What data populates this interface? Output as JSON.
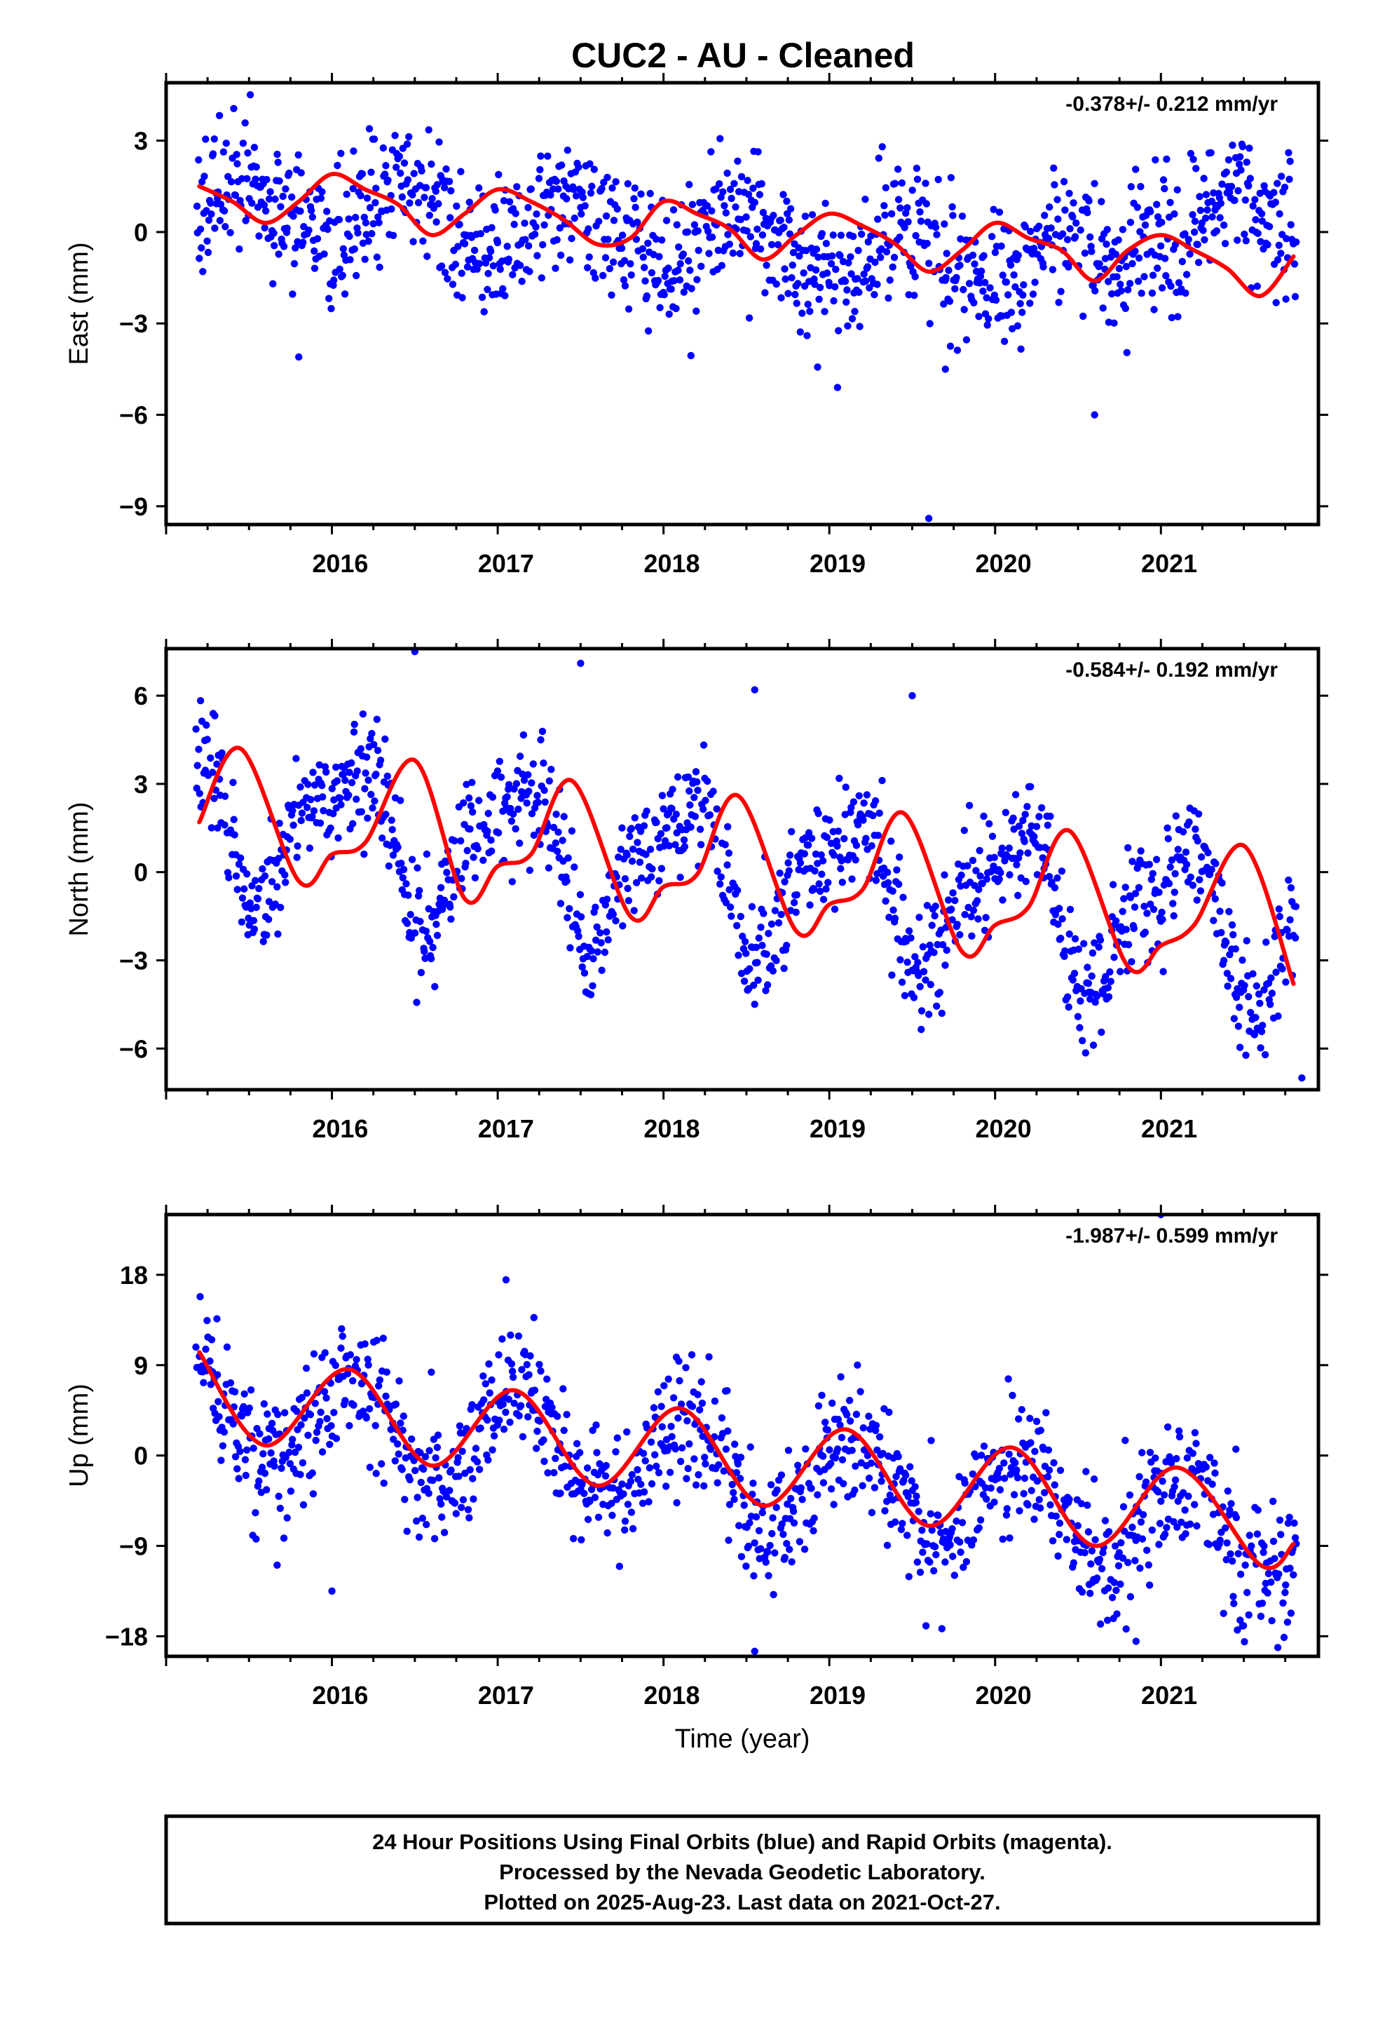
{
  "title": "CUC2  - AU - Cleaned",
  "colors": {
    "points": "#0000ff",
    "fit": "#ff0000",
    "frame": "#000000"
  },
  "chart_data": [
    {
      "type": "scatter",
      "ylabel": "East (mm)",
      "xlabel": "",
      "rate": "-0.378+/- 0.212 mm/yr",
      "xlim": [
        2015.0,
        2021.95
      ],
      "ylim": [
        -9.6,
        4.9
      ],
      "yticks": [
        3,
        0,
        -3,
        -6,
        -9
      ],
      "ytick_labels": [
        "3",
        "0",
        "−3",
        "−6",
        "−9"
      ],
      "xticks": [
        2016,
        2017,
        2018,
        2019,
        2020,
        2021
      ],
      "xtick_labels": [
        "2016",
        "2017",
        "2018",
        "2019",
        "2020",
        "2021"
      ],
      "trend": {
        "rate": -0.378,
        "offset": 0.95
      },
      "seasonal": {
        "annual_amp": 0.9,
        "annual_phase": -0.2,
        "semi_amp": 0.3,
        "semi_phase": 0.4
      },
      "offsets": [
        {
          "x": 2020.8,
          "jump": 1.6
        }
      ],
      "noise": 1.15,
      "outliers": [
        {
          "x": 2015.8,
          "y": -4.1
        },
        {
          "x": 2019.6,
          "y": -9.4
        },
        {
          "x": 2020.6,
          "y": -6.0
        },
        {
          "x": 2019.7,
          "y": -4.5
        }
      ],
      "fit_x": [
        2015.2,
        2015.4,
        2015.6,
        2015.8,
        2016.0,
        2016.2,
        2016.4,
        2016.6,
        2016.8,
        2017.0,
        2017.2,
        2017.4,
        2017.6,
        2017.8,
        2018.0,
        2018.2,
        2018.4,
        2018.6,
        2018.8,
        2019.0,
        2019.2,
        2019.4,
        2019.6,
        2019.8,
        2020.0,
        2020.2,
        2020.4,
        2020.6,
        2020.8,
        2021.0,
        2021.2,
        2021.4,
        2021.6,
        2021.8
      ],
      "fit_y": [
        1.5,
        1.0,
        0.3,
        1.0,
        1.9,
        1.4,
        0.9,
        -0.1,
        0.6,
        1.4,
        1.0,
        0.4,
        -0.4,
        -0.2,
        1.0,
        0.6,
        0.1,
        -0.9,
        -0.1,
        0.6,
        0.2,
        -0.4,
        -1.3,
        -0.6,
        0.3,
        -0.2,
        -0.6,
        -1.6,
        -0.6,
        -0.1,
        -0.6,
        -1.2,
        -2.1,
        -0.8
      ]
    },
    {
      "type": "scatter",
      "ylabel": "North (mm)",
      "xlabel": "",
      "rate": "-0.584+/- 0.192 mm/yr",
      "xlim": [
        2015.0,
        2021.95
      ],
      "ylim": [
        -7.4,
        7.6
      ],
      "yticks": [
        6,
        3,
        0,
        -3,
        -6
      ],
      "ytick_labels": [
        "6",
        "3",
        "0",
        "−3",
        "−6"
      ],
      "xticks": [
        2016,
        2017,
        2018,
        2019,
        2020,
        2021
      ],
      "xtick_labels": [
        "2016",
        "2017",
        "2018",
        "2019",
        "2020",
        "2021"
      ],
      "trend": {
        "rate": -0.584,
        "offset": 1.9
      },
      "seasonal": {
        "annual_amp": 2.2,
        "annual_phase": 0.15,
        "semi_amp": 0.9,
        "semi_phase": -0.3
      },
      "offsets": [],
      "noise": 1.0,
      "outliers": [
        {
          "x": 2016.5,
          "y": 7.5
        },
        {
          "x": 2017.5,
          "y": 7.1
        },
        {
          "x": 2019.5,
          "y": 6.0
        },
        {
          "x": 2021.85,
          "y": -7.0
        },
        {
          "x": 2018.55,
          "y": 6.2
        }
      ],
      "fit_x": [
        2015.2,
        2015.45,
        2015.8,
        2016.0,
        2016.2,
        2016.5,
        2016.8,
        2017.0,
        2017.2,
        2017.45,
        2017.8,
        2018.0,
        2018.2,
        2018.45,
        2018.8,
        2019.0,
        2019.2,
        2019.45,
        2019.8,
        2020.0,
        2020.2,
        2020.45,
        2020.8,
        2021.0,
        2021.2,
        2021.5,
        2021.8
      ],
      "fit_y": [
        1.7,
        4.2,
        -0.3,
        0.6,
        1.0,
        3.8,
        -0.9,
        0.2,
        0.6,
        3.1,
        -1.5,
        -0.5,
        -0.1,
        2.6,
        -2.0,
        -1.1,
        -0.6,
        2.0,
        -2.7,
        -1.8,
        -1.2,
        1.4,
        -3.2,
        -2.5,
        -1.8,
        0.9,
        -3.8
      ]
    },
    {
      "type": "scatter",
      "ylabel": "Up (mm)",
      "xlabel": "Time (year)",
      "rate": "-1.987+/- 0.599 mm/yr",
      "xlim": [
        2015.0,
        2021.95
      ],
      "ylim": [
        -20.0,
        24.0
      ],
      "yticks": [
        18,
        9,
        0,
        -9,
        -18
      ],
      "ytick_labels": [
        "18",
        "9",
        "0",
        "−9",
        "−18"
      ],
      "xticks": [
        2016,
        2017,
        2018,
        2019,
        2020,
        2021
      ],
      "xtick_labels": [
        "2016",
        "2017",
        "2018",
        "2019",
        "2020",
        "2021"
      ],
      "trend": {
        "rate": -1.987,
        "offset": 5.0
      },
      "seasonal": {
        "annual_amp": 4.6,
        "annual_phase": 0.12,
        "semi_amp": 0.0,
        "semi_phase": 0.0
      },
      "offsets": [],
      "noise": 3.3,
      "outliers": [
        {
          "x": 2017.05,
          "y": 17.5
        },
        {
          "x": 2021.0,
          "y": 24.0
        },
        {
          "x": 2018.55,
          "y": -19.5
        },
        {
          "x": 2016.0,
          "y": -13.5
        },
        {
          "x": 2020.85,
          "y": -18.5
        }
      ],
      "fit_x": [
        2015.2,
        2015.6,
        2016.1,
        2016.6,
        2017.1,
        2017.6,
        2018.1,
        2018.6,
        2019.1,
        2019.6,
        2020.1,
        2020.6,
        2021.1,
        2021.6,
        2021.8
      ],
      "fit_y": [
        10.3,
        1.0,
        8.6,
        -1.0,
        6.5,
        -3.0,
        4.7,
        -5.0,
        2.6,
        -7.0,
        0.8,
        -9.0,
        -1.2,
        -10.9,
        -8.8
      ]
    }
  ],
  "footer": {
    "line1": "24 Hour Positions Using Final Orbits (blue) and Rapid Orbits (magenta).",
    "line2": "Processed by the Nevada Geodetic Laboratory.",
    "line3": "Plotted on 2025-Aug-23. Last data on 2021-Oct-27."
  }
}
